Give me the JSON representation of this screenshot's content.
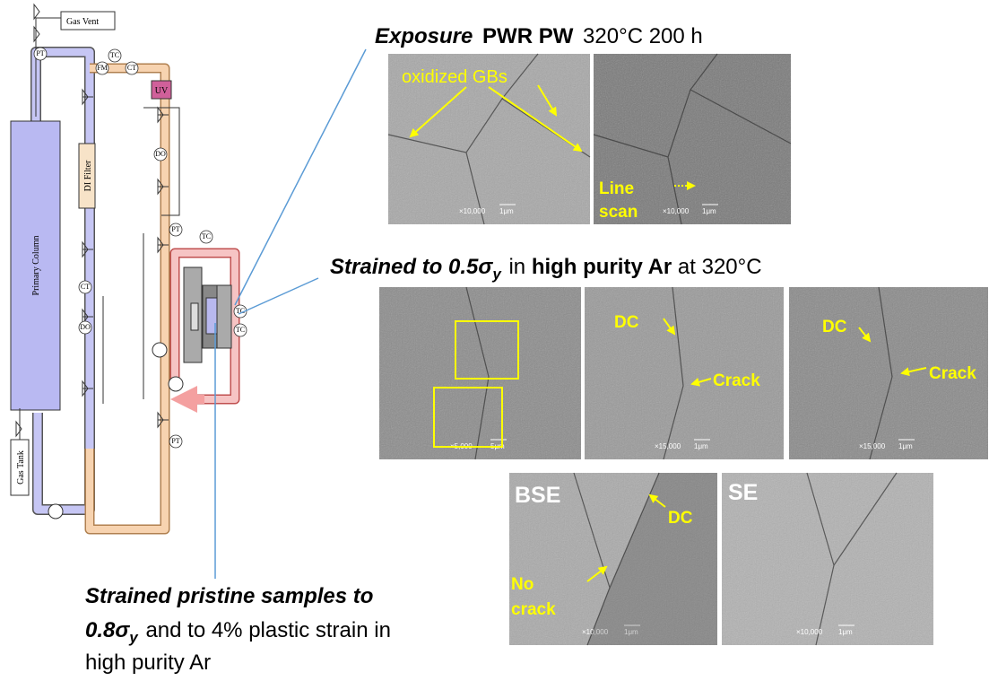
{
  "diagram": {
    "gas_vent": "Gas Vent",
    "gas_tank": "Gas Tank",
    "primary_column": "Primary Column",
    "di_filter": "DI Filter",
    "uv": "UV",
    "instruments": [
      "PT",
      "TC",
      "FM",
      "CT",
      "DO",
      "PT",
      "TC",
      "TC",
      "TC",
      "CT",
      "DO",
      "PT"
    ]
  },
  "exposure": {
    "caption": [
      "Exposure",
      "PWR PW",
      "320°C 200 h"
    ],
    "images": [
      {
        "labels": [
          "oxidized GBs"
        ],
        "magnification": "×10,000",
        "scale": "1μm"
      },
      {
        "labels": [
          "Line",
          "scan"
        ],
        "magnification": "×10,000",
        "scale": "1μm"
      }
    ]
  },
  "strained": {
    "caption": [
      "Strained to 0.5σ",
      "y",
      "in",
      "high purity Ar",
      "at 320°C"
    ],
    "images": [
      {
        "magnification": "×5,000",
        "scale": "5μm"
      },
      {
        "labels": [
          "DC",
          "Crack"
        ],
        "magnification": "×15,000",
        "scale": "1μm"
      },
      {
        "labels": [
          "DC",
          "Crack"
        ],
        "magnification": "×15,000",
        "scale": "1μm"
      }
    ]
  },
  "pristine": {
    "caption": [
      "Strained pristine samples to",
      "0.8σ",
      "y",
      "and to 4% plastic strain in",
      "high purity Ar"
    ],
    "images": [
      {
        "labels": [
          "BSE",
          "DC",
          "No",
          "crack"
        ],
        "magnification": "×10,000",
        "scale": "1μm"
      },
      {
        "labels": [
          "SE"
        ],
        "magnification": "×10,000",
        "scale": "1μm"
      }
    ]
  }
}
